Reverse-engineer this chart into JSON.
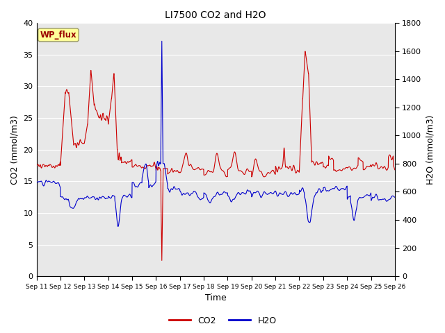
{
  "title": "LI7500 CO2 and H2O",
  "xlabel": "Time",
  "ylabel_left": "CO2 (mmol/m3)",
  "ylabel_right": "H2O (mmol/m3)",
  "xlim": [
    0,
    15
  ],
  "ylim_left": [
    0,
    40
  ],
  "ylim_right": [
    0,
    1800
  ],
  "x_tick_labels": [
    "Sep 11",
    "Sep 12",
    "Sep 13",
    "Sep 14",
    "Sep 15",
    "Sep 16",
    "Sep 17",
    "Sep 18",
    "Sep 19",
    "Sep 20",
    "Sep 21",
    "Sep 22",
    "Sep 23",
    "Sep 24",
    "Sep 25",
    "Sep 26"
  ],
  "yticks_left": [
    0,
    5,
    10,
    15,
    20,
    25,
    30,
    35,
    40
  ],
  "yticks_right": [
    0,
    200,
    400,
    600,
    800,
    1000,
    1200,
    1400,
    1600,
    1800
  ],
  "legend_labels": [
    "CO2",
    "H2O"
  ],
  "legend_colors": [
    "#cc0000",
    "#0000cc"
  ],
  "annotation_text": "WP_flux",
  "bg_color": "#e8e8e8",
  "line_color_co2": "#cc0000",
  "line_color_h2o": "#0000cc",
  "grid_color": "white"
}
